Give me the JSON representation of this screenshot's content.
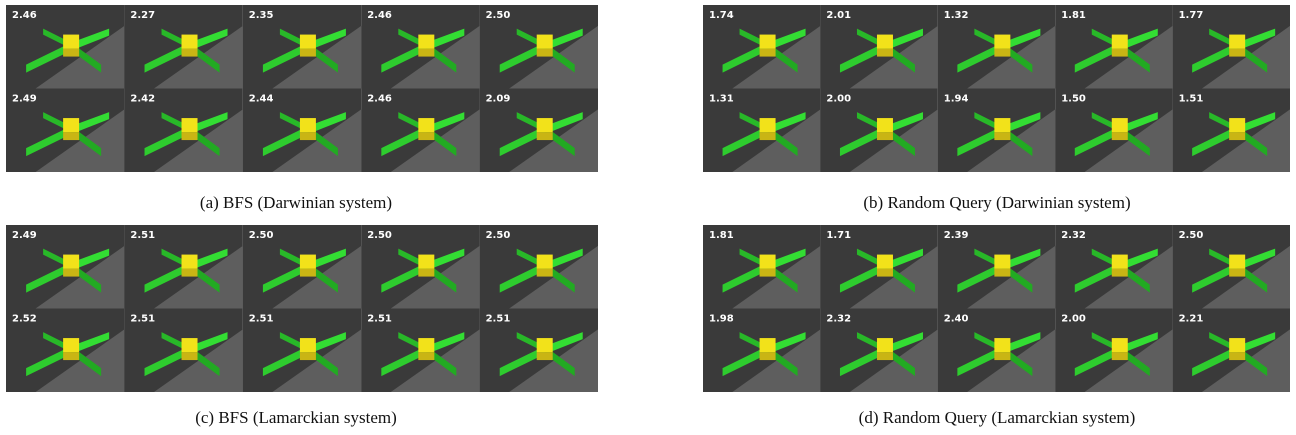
{
  "panels": [
    {
      "caption": "(a) BFS (Darwinian system)",
      "tiles": [
        "2.46",
        "2.27",
        "2.35",
        "2.46",
        "2.50",
        "2.49",
        "2.42",
        "2.44",
        "2.46",
        "2.09"
      ]
    },
    {
      "caption": "(b) Random Query (Darwinian system)",
      "tiles": [
        "1.74",
        "2.01",
        "1.32",
        "1.81",
        "1.77",
        "1.31",
        "2.00",
        "1.94",
        "1.50",
        "1.51"
      ]
    },
    {
      "caption": "(c) BFS (Lamarckian system)",
      "tiles": [
        "2.49",
        "2.51",
        "2.50",
        "2.50",
        "2.50",
        "2.52",
        "2.51",
        "2.51",
        "2.51",
        "2.51"
      ]
    },
    {
      "caption": "(d) Random Query (Lamarckian system)",
      "tiles": [
        "1.81",
        "1.71",
        "2.39",
        "2.32",
        "2.50",
        "1.98",
        "2.32",
        "2.40",
        "2.00",
        "2.21"
      ]
    }
  ]
}
